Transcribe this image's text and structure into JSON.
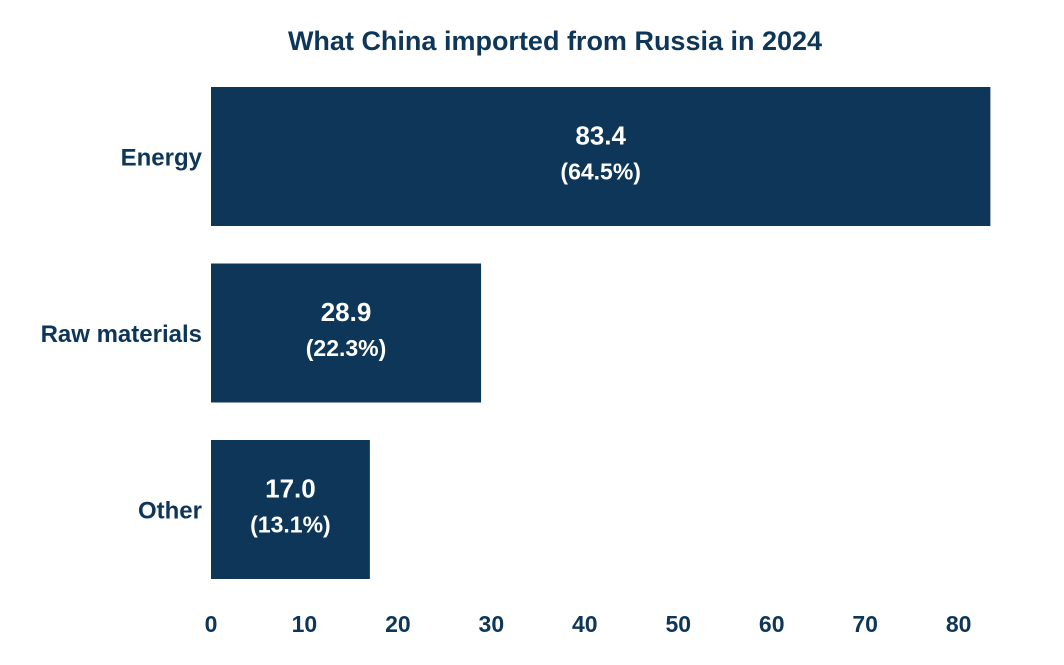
{
  "chart_data": {
    "type": "bar",
    "orientation": "horizontal",
    "title": "What China imported from Russia in 2024",
    "categories": [
      "Energy",
      "Raw materials",
      "Other"
    ],
    "values": [
      83.4,
      28.9,
      17.0
    ],
    "value_labels": [
      "83.4",
      "28.9",
      "17.0"
    ],
    "percent_labels": [
      "(64.5%)",
      "(22.3%)",
      "(13.1%)"
    ],
    "xticks": [
      "0",
      "10",
      "20",
      "30",
      "40",
      "50",
      "60",
      "70",
      "80"
    ],
    "xlim": [
      0,
      84
    ],
    "xlabel": "",
    "ylabel": "",
    "grid": false,
    "legend": "none"
  },
  "colors": {
    "bar": "#0e3659",
    "text": "#0e3659",
    "bar_label": "#ffffff",
    "background": "#ffffff"
  }
}
